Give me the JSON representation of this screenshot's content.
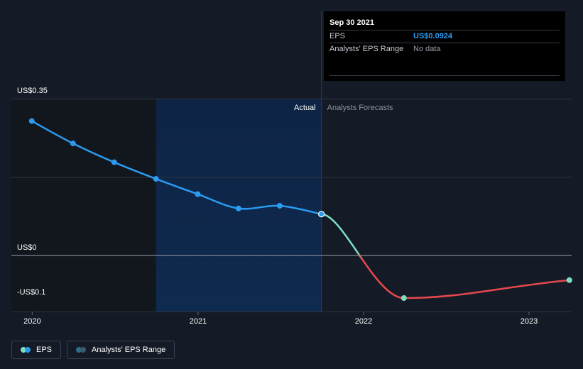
{
  "tooltip": {
    "date": "Sep 30 2021",
    "rows": [
      {
        "label": "EPS",
        "value": "US$0.0924"
      },
      {
        "label": "Analysts' EPS Range",
        "value": "No data"
      }
    ]
  },
  "region_labels": {
    "actual": "Actual",
    "forecast": "Analysts Forecasts"
  },
  "legend": {
    "eps": "EPS",
    "range": "Analysts' EPS Range"
  },
  "colors": {
    "background": "#151b26",
    "eps_actual": "#2a9bf0",
    "eps_forecast_up": "#7be0c3",
    "eps_forecast_down": "#e5484d",
    "past_shade": "#12161d",
    "actual_shade": "#0d2444",
    "range_swatch": "#2e6f87"
  },
  "chart_data": {
    "type": "line",
    "y_tick_labels": [
      "US$0.35",
      "US$0",
      "-US$0.1"
    ],
    "y_ticks": [
      0.35,
      0,
      -0.1
    ],
    "x_tick_labels": [
      "2020",
      "2021",
      "2022",
      "2023"
    ],
    "x_ticks": [
      "2020-01-01",
      "2021-01-01",
      "2022-01-01",
      "2023-01-01"
    ],
    "ylim": [
      -0.125,
      0.35
    ],
    "xlim": [
      "2019-11-16",
      "2023-04-05"
    ],
    "shaded_from": "2020-09-30",
    "actual_until": "2021-09-30",
    "series": [
      {
        "name": "EPS",
        "kind": "actual",
        "points": [
          {
            "date": "2019-12-31",
            "value": 0.3
          },
          {
            "date": "2020-03-31",
            "value": 0.25
          },
          {
            "date": "2020-06-30",
            "value": 0.208
          },
          {
            "date": "2020-09-30",
            "value": 0.171
          },
          {
            "date": "2020-12-31",
            "value": 0.137
          },
          {
            "date": "2021-03-31",
            "value": 0.105
          },
          {
            "date": "2021-06-30",
            "value": 0.111
          },
          {
            "date": "2021-09-30",
            "value": 0.0924
          }
        ]
      },
      {
        "name": "EPS",
        "kind": "forecast",
        "points": [
          {
            "date": "2021-09-30",
            "value": 0.0924
          },
          {
            "date": "2022-03-31",
            "value": -0.095
          },
          {
            "date": "2023-03-31",
            "value": -0.055
          }
        ]
      }
    ]
  }
}
